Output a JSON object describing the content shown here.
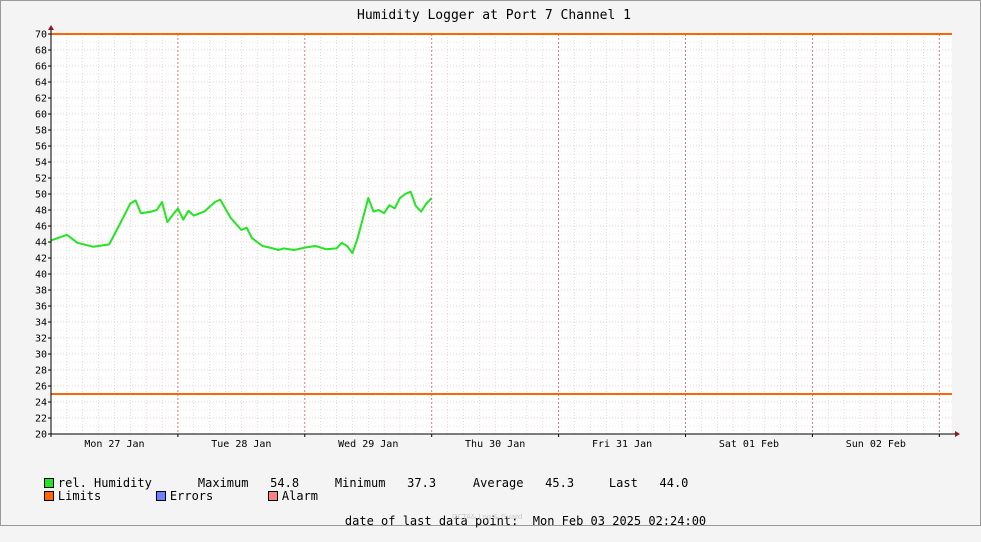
{
  "chart_data": {
    "type": "line",
    "title": "Humidity Logger at Port 7 Channel 1",
    "xlabel": "",
    "ylabel": "",
    "ylim": [
      20,
      70
    ],
    "grid": true,
    "ticks": [
      "20",
      "22",
      "24",
      "26",
      "28",
      "30",
      "32",
      "34",
      "36",
      "38",
      "40",
      "42",
      "44",
      "46",
      "48",
      "50",
      "52",
      "54",
      "56",
      "58",
      "60",
      "62",
      "64",
      "66",
      "68",
      "70"
    ],
    "x_range": [
      "Mon 27 Jan 00:00",
      "Mon 03 Feb 02:24"
    ],
    "day_labels": [
      "Mon 27 Jan",
      "Tue 28 Jan",
      "Wed 29 Jan",
      "Thu 30 Jan",
      "Fri 31 Jan",
      "Sat 01 Feb",
      "Sun 02 Feb"
    ],
    "limits": [
      {
        "name": "upper",
        "value": 70,
        "color": "#ff6600"
      },
      {
        "name": "lower",
        "value": 25,
        "color": "#ff6600"
      }
    ],
    "series": [
      {
        "name": "rel. Humidity",
        "color": "#22e622",
        "points": [
          [
            "Mon 27 Jan 00:00",
            44.2
          ],
          [
            "Mon 27 Jan 03:00",
            44.9
          ],
          [
            "Mon 27 Jan 05:00",
            43.9
          ],
          [
            "Mon 27 Jan 08:00",
            43.4
          ],
          [
            "Mon 27 Jan 11:00",
            43.7
          ],
          [
            "Mon 27 Jan 13:00",
            46.2
          ],
          [
            "Mon 27 Jan 15:00",
            48.8
          ],
          [
            "Mon 27 Jan 16:00",
            49.2
          ],
          [
            "Mon 27 Jan 17:00",
            47.6
          ],
          [
            "Mon 27 Jan 19:00",
            47.8
          ],
          [
            "Mon 27 Jan 20:00",
            48.0
          ],
          [
            "Mon 27 Jan 21:00",
            49.0
          ],
          [
            "Mon 27 Jan 22:00",
            46.5
          ],
          [
            "Mon 28 Jan 00:00",
            48.2
          ],
          [
            "Tue 28 Jan 01:00",
            46.8
          ],
          [
            "Tue 28 Jan 02:00",
            47.9
          ],
          [
            "Tue 28 Jan 03:00",
            47.3
          ],
          [
            "Tue 28 Jan 05:00",
            47.8
          ],
          [
            "Tue 28 Jan 07:00",
            49.0
          ],
          [
            "Tue 28 Jan 08:00",
            49.3
          ],
          [
            "Tue 28 Jan 10:00",
            47.0
          ],
          [
            "Tue 28 Jan 12:00",
            45.5
          ],
          [
            "Tue 28 Jan 13:00",
            45.8
          ],
          [
            "Tue 28 Jan 14:00",
            44.5
          ],
          [
            "Tue 28 Jan 16:00",
            43.5
          ],
          [
            "Tue 28 Jan 18:00",
            43.2
          ],
          [
            "Tue 28 Jan 19:00",
            43.0
          ],
          [
            "Tue 28 Jan 20:00",
            43.2
          ],
          [
            "Tue 28 Jan 22:00",
            43.0
          ],
          [
            "Wed 29 Jan 00:00",
            43.3
          ],
          [
            "Wed 29 Jan 02:00",
            43.5
          ],
          [
            "Wed 29 Jan 04:00",
            43.1
          ],
          [
            "Wed 29 Jan 06:00",
            43.2
          ],
          [
            "Wed 29 Jan 07:00",
            43.9
          ],
          [
            "Wed 29 Jan 08:00",
            43.5
          ],
          [
            "Wed 29 Jan 09:00",
            42.6
          ],
          [
            "Wed 29 Jan 10:00",
            44.5
          ],
          [
            "Wed 29 Jan 11:00",
            47.0
          ],
          [
            "Wed 29 Jan 12:00",
            49.5
          ],
          [
            "Wed 29 Jan 13:00",
            47.8
          ],
          [
            "Wed 29 Jan 14:00",
            48.0
          ],
          [
            "Wed 29 Jan 15:00",
            47.6
          ],
          [
            "Wed 29 Jan 16:00",
            48.6
          ],
          [
            "Wed 29 Jan 17:00",
            48.2
          ],
          [
            "Wed 29 Jan 18:00",
            49.5
          ],
          [
            "Wed 29 Jan 19:00",
            50.0
          ],
          [
            "Wed 29 Jan 20:00",
            50.3
          ],
          [
            "Wed 29 Jan 21:00",
            48.5
          ],
          [
            "Wed 29 Jan 22:00",
            47.8
          ],
          [
            "Wed 29 Jan 23:00",
            48.8
          ],
          [
            "Thu 30 Jan 00:00",
            49.5
          ]
        ]
      }
    ]
  },
  "legend": {
    "series_name": "rel. Humidity",
    "maximum_label": "Maximum",
    "maximum_value": "54.8",
    "minimum_label": "Minimum",
    "minimum_value": "37.3",
    "average_label": "Average",
    "average_value": "45.3",
    "last_label": "Last",
    "last_value": "44.0",
    "limits_label": "Limits",
    "errors_label": "Errors",
    "alarm_label": "Alarm",
    "colors": {
      "series": "#22e622",
      "limits": "#ff6600",
      "errors": "#6f80ff",
      "alarm": "#ff8080"
    }
  },
  "footer": {
    "last_point_label": "date of last data point:",
    "last_point_value": "Mon Feb 03 2025 02:24:00",
    "credit": "OCTA& Log & Guard"
  }
}
